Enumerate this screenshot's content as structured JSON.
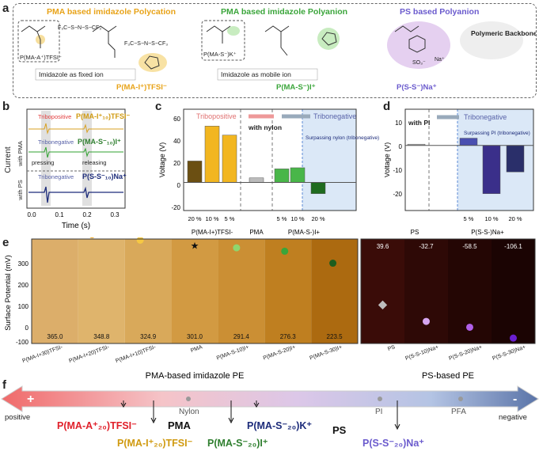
{
  "panels": {
    "a": "a",
    "b": "b",
    "c": "c",
    "d": "d",
    "e": "e",
    "f": "f"
  },
  "colors": {
    "pos": "#e23d3d",
    "neg": "#5862a8",
    "orange": "#e8a318",
    "green": "#3aa53a",
    "purple": "#6a5acd",
    "navy": "#1c2b7a"
  },
  "panel_a": {
    "title_1": "PMA based imidazole Polycation",
    "title_2": "PMA based imidazole Polyanion",
    "title_3": "PS based Polyanion",
    "box_1": "P(MA-A⁺)TFSI⁻",
    "box_2": "P(MA-S⁻)K⁺",
    "note_1": "Imidazole as fixed ion",
    "note_2": "Imidazole as mobile ion",
    "name_1": "P(MA-I⁺)TFSI⁻",
    "name_2": "P(MA-S⁻)I⁺",
    "name_3": "P(S-S⁻)Na⁺",
    "switch": "Polymeric Backbone switching",
    "tfsi": "F₃C−S−N−S−CF₃",
    "na": "Na⁺"
  },
  "panel_b": {
    "traces": [
      {
        "tag": "Tribopositive",
        "name": "P(MA-I⁺₁₀)TFSI⁻"
      },
      {
        "tag": "Tribonegative",
        "name": "P(MA-S⁻₁₀)I⁺"
      },
      {
        "tag": "Tribonegative",
        "name": "P(S-S⁻₁₀)Na⁺"
      }
    ],
    "with_pma": "with PMA",
    "with_ps": "with PS",
    "pressing": "pressing",
    "releasing": "releasing",
    "ylabel": "Current",
    "xlabel": "Time (s)",
    "xticks": [
      "0.0",
      "0.1",
      "0.2",
      "0.3"
    ]
  },
  "panel_c": {
    "ylabel": "Voltage (V)",
    "yticks": [
      "60",
      "40",
      "20",
      "0",
      "-20"
    ],
    "tribopositive": "Tribopositive",
    "tribonegative": "Tribonegative",
    "with_nylon": "with nylon",
    "surpass": "Surpassing nylon (tribonegative)",
    "pct": [
      "20 %",
      "10 %",
      "5 %",
      "5 %",
      "10 %",
      "20 %"
    ],
    "groups": [
      "P(MA-I+)TFSI-",
      "PMA",
      "P(MA-S-)I+"
    ]
  },
  "panel_d": {
    "ylabel": "Voltage (V)",
    "yticks": [
      "10",
      "0",
      "-10",
      "-20"
    ],
    "with_pi": "with PI",
    "tribonegative": "Tribonegative",
    "surpass": "Surpassing PI (tribonegative)",
    "pct": [
      "5 %",
      "10 %",
      "20 %"
    ],
    "groups": [
      "PS",
      "P(S-S-)Na+"
    ]
  },
  "chart_data": [
    {
      "type": "bar",
      "title": "c",
      "ylabel": "Voltage (V)",
      "ylim": [
        -25,
        65
      ],
      "categories": [
        "P(MA-I+)TFSI- 20 %",
        "P(MA-I+)TFSI- 10 %",
        "P(MA-I+)TFSI- 5 %",
        "PMA",
        "P(MA-S-)I+ 5 %",
        "P(MA-S-)I+ 10 %",
        "P(MA-S-)I+ 20 %"
      ],
      "values": [
        19,
        50,
        42,
        4,
        12,
        13,
        -10
      ]
    },
    {
      "type": "bar",
      "title": "d",
      "ylabel": "Voltage (V)",
      "ylim": [
        -27,
        15
      ],
      "categories": [
        "PS",
        "P(S-S-)Na+ 5 %",
        "P(S-S-)Na+ 10 %",
        "P(S-S-)Na+ 20 %"
      ],
      "values": [
        0.5,
        3,
        -20,
        -11
      ]
    }
  ],
  "panel_e": {
    "ylabel": "Surface Potential (mV)",
    "yticks": [
      "300",
      "200",
      "100",
      "0",
      "-100"
    ],
    "tiles_pma": [
      {
        "label": "P(MA-I+30)TFSI-",
        "value": "365.0",
        "color": "#dcae6a",
        "dot": "#5a3d16"
      },
      {
        "label": "P(MA-I+20)TFSI-",
        "value": "348.8",
        "color": "#dfb46c",
        "dot": "#f0a81f"
      },
      {
        "label": "P(MA-I+10)TFSI-",
        "value": "324.9",
        "color": "#d9a95a",
        "dot": "#f6c843"
      },
      {
        "label": "PMA",
        "value": "301.0",
        "color": "#d29a42",
        "dot": "#111111"
      },
      {
        "label": "P(MA-S-10)I+",
        "value": "291.4",
        "color": "#cb8f34",
        "dot": "#8fd66e"
      },
      {
        "label": "P(MA-S-20)I+",
        "value": "276.3",
        "color": "#bf7f20",
        "dot": "#3aa53a"
      },
      {
        "label": "P(MA-S-30)I+",
        "value": "223.5",
        "color": "#ac6a10",
        "dot": "#1e5d1e"
      }
    ],
    "tiles_ps": [
      {
        "label": "PS",
        "value": "39.6",
        "color": "#3a0c08",
        "dot": "#bdbdbd"
      },
      {
        "label": "P(S-S-10)Na+",
        "value": "-32.7",
        "color": "#2e0906",
        "dot": "#d6a6f0"
      },
      {
        "label": "P(S-S-20)Na+",
        "value": "-58.5",
        "color": "#240604",
        "dot": "#b060e8"
      },
      {
        "label": "P(S-S-30)Na+",
        "value": "-106.1",
        "color": "#1b0403",
        "dot": "#6a1fd0"
      }
    ],
    "group_pma": "PMA-based imidazole PE",
    "group_ps": "PS-based PE"
  },
  "panel_f": {
    "positive": "positive",
    "negative": "negative",
    "plus": "+",
    "minus": "-",
    "nylon": "Nylon",
    "pi": "PI",
    "pfa": "PFA",
    "top_labels": [
      {
        "text": "P(MA-A⁺₂₀)TFSI⁻",
        "color": "#e0202a"
      },
      {
        "text": "PMA",
        "color": "#111111"
      },
      {
        "text": "P(MA-S⁻₂₀)K⁺",
        "color": "#1c2b7a"
      },
      {
        "text": "PS",
        "color": "#111111"
      }
    ],
    "bottom_labels": [
      {
        "text": "P(MA-I⁺₂₀)TFSI⁻",
        "color": "#d09a10"
      },
      {
        "text": "P(MA-S⁻₂₀)I⁺",
        "color": "#2f7f2f"
      },
      {
        "text": "P(S-S⁻₂₀)Na⁺",
        "color": "#6a5acd"
      }
    ]
  }
}
